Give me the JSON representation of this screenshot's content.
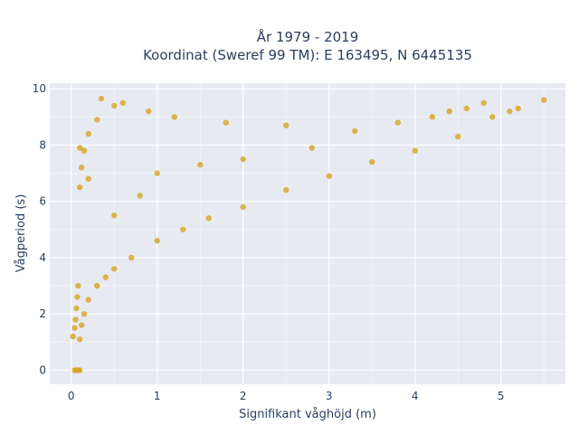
{
  "chart_data": {
    "type": "scatter",
    "title_line1": "År 1979 - 2019",
    "title_line2": "Koordinat (Sweref 99 TM): E 163495, N 6445135",
    "xlabel": "Signifikant våghöjd (m)",
    "ylabel": "Vågperiod (s)",
    "xlim": [
      -0.25,
      5.75
    ],
    "ylim": [
      -0.5,
      10.2
    ],
    "x_ticks": [
      0,
      1,
      2,
      3,
      4,
      5
    ],
    "y_ticks": [
      0,
      2,
      4,
      6,
      8,
      10
    ],
    "x_tick_labels": [
      "0",
      "1",
      "2",
      "3",
      "4",
      "5"
    ],
    "y_tick_labels": [
      "0",
      "2",
      "4",
      "6",
      "8",
      "10"
    ],
    "grid": true,
    "marker_color": "#D4A520",
    "background_color": "#E8EAF2",
    "series": [
      {
        "points": [
          [
            0.04,
            0.0
          ],
          [
            0.06,
            0.0
          ],
          [
            0.08,
            0.0
          ],
          [
            0.1,
            0.0
          ],
          [
            0.02,
            1.2
          ],
          [
            0.04,
            1.5
          ],
          [
            0.05,
            1.8
          ],
          [
            0.06,
            2.2
          ],
          [
            0.07,
            2.6
          ],
          [
            0.08,
            3.0
          ],
          [
            0.1,
            1.1
          ],
          [
            0.12,
            1.6
          ],
          [
            0.15,
            2.0
          ],
          [
            0.2,
            2.5
          ],
          [
            0.3,
            3.0
          ],
          [
            0.4,
            3.3
          ],
          [
            0.5,
            3.6
          ],
          [
            0.7,
            4.0
          ],
          [
            1.0,
            4.6
          ],
          [
            1.3,
            5.0
          ],
          [
            1.6,
            5.4
          ],
          [
            2.0,
            5.8
          ],
          [
            2.5,
            6.4
          ],
          [
            3.0,
            6.9
          ],
          [
            3.5,
            7.4
          ],
          [
            4.0,
            7.8
          ],
          [
            4.5,
            8.3
          ],
          [
            0.1,
            6.5
          ],
          [
            0.12,
            7.2
          ],
          [
            0.15,
            7.8
          ],
          [
            0.2,
            8.4
          ],
          [
            0.3,
            8.9
          ],
          [
            0.5,
            9.4
          ],
          [
            0.35,
            9.65
          ],
          [
            0.6,
            9.5
          ],
          [
            0.9,
            9.2
          ],
          [
            1.2,
            9.0
          ],
          [
            1.8,
            8.8
          ],
          [
            2.5,
            8.7
          ],
          [
            3.3,
            8.5
          ],
          [
            3.8,
            8.8
          ],
          [
            4.2,
            9.0
          ],
          [
            4.4,
            9.2
          ],
          [
            4.6,
            9.3
          ],
          [
            4.8,
            9.5
          ],
          [
            4.9,
            9.0
          ],
          [
            5.1,
            9.2
          ],
          [
            5.2,
            9.3
          ],
          [
            5.5,
            9.6
          ],
          [
            0.1,
            7.9
          ],
          [
            0.2,
            6.8
          ],
          [
            0.5,
            5.5
          ],
          [
            0.8,
            6.2
          ],
          [
            1.0,
            7.0
          ],
          [
            1.5,
            7.3
          ],
          [
            2.0,
            7.5
          ],
          [
            2.8,
            7.9
          ]
        ]
      }
    ]
  }
}
